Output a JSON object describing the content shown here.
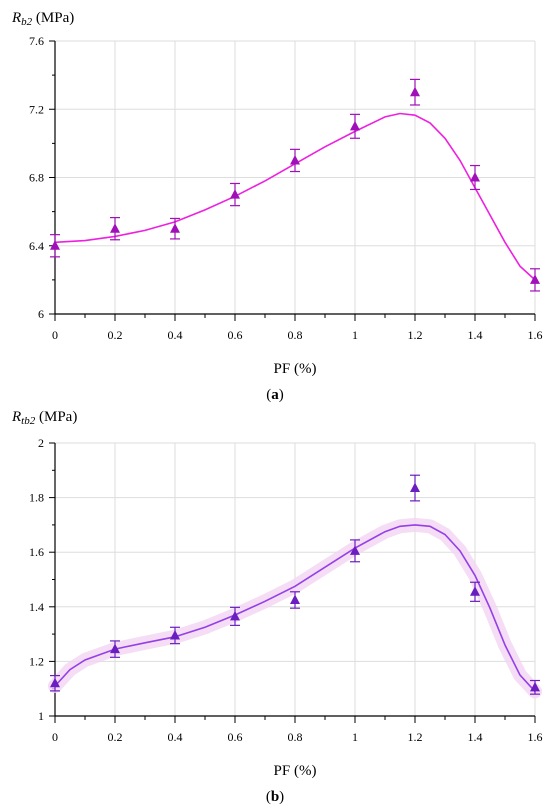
{
  "figure": {
    "panels": [
      {
        "caption_letter": "a",
        "ylabel_main": "R",
        "ylabel_sub": "b2",
        "ylabel_unit": " (MPa)",
        "xlabel": "PF (%)"
      },
      {
        "caption_letter": "b",
        "ylabel_main": "R",
        "ylabel_sub": "tb2",
        "ylabel_unit": " (MPa)",
        "xlabel": "PF (%)"
      }
    ]
  },
  "chart_data": [
    {
      "type": "scatter",
      "xlabel": "PF (%)",
      "ylabel": "Rb2 (MPa)",
      "xlim": [
        0,
        1.6
      ],
      "ylim": [
        6,
        7.6
      ],
      "xticks": [
        0,
        0.2,
        0.4,
        0.6,
        0.8,
        1,
        1.2,
        1.4,
        1.6
      ],
      "yticks": [
        6,
        6.4,
        6.8,
        7.2,
        7.6
      ],
      "xtick_labels": [
        "0",
        "0.2",
        "0.4",
        "0.6",
        "0.8",
        "1",
        "1.2",
        "1.4",
        "1.6"
      ],
      "ytick_labels": [
        "6",
        "6.4",
        "6.8",
        "7.2",
        "7.6"
      ],
      "grid": true,
      "marker_color": "#a010b8",
      "fit_color": "#ee20e0",
      "series": [
        {
          "x": [
            0,
            0.2,
            0.4,
            0.6,
            0.8,
            1,
            1.2,
            1.4,
            1.6
          ],
          "y": [
            6.4,
            6.5,
            6.5,
            6.7,
            6.9,
            7.1,
            7.3,
            6.8,
            6.2
          ],
          "err": [
            0.065,
            0.065,
            0.06,
            0.065,
            0.065,
            0.07,
            0.075,
            0.07,
            0.065
          ]
        }
      ],
      "fit": {
        "x": [
          0,
          0.1,
          0.2,
          0.3,
          0.4,
          0.5,
          0.6,
          0.7,
          0.8,
          0.9,
          1,
          1.1,
          1.15,
          1.2,
          1.25,
          1.3,
          1.35,
          1.4,
          1.45,
          1.5,
          1.55,
          1.6
        ],
        "y": [
          6.42,
          6.43,
          6.455,
          6.49,
          6.54,
          6.61,
          6.69,
          6.78,
          6.88,
          6.98,
          7.07,
          7.155,
          7.175,
          7.165,
          7.12,
          7.03,
          6.9,
          6.74,
          6.58,
          6.42,
          6.28,
          6.2
        ]
      }
    },
    {
      "type": "scatter",
      "xlabel": "PF (%)",
      "ylabel": "Rtb2 (MPa)",
      "xlim": [
        0,
        1.6
      ],
      "ylim": [
        1,
        2
      ],
      "xticks": [
        0,
        0.2,
        0.4,
        0.6,
        0.8,
        1,
        1.2,
        1.4,
        1.6
      ],
      "yticks": [
        1,
        1.2,
        1.4,
        1.6,
        1.8,
        2
      ],
      "xtick_labels": [
        "0",
        "0.2",
        "0.4",
        "0.6",
        "0.8",
        "1",
        "1.2",
        "1.4",
        "1.6"
      ],
      "ytick_labels": [
        "1",
        "1.2",
        "1.4",
        "1.6",
        "1.8",
        "2"
      ],
      "grid": true,
      "marker_color": "#6a1ec0",
      "fit_color": "#9440e6",
      "series": [
        {
          "x": [
            0,
            0.2,
            0.4,
            0.6,
            0.8,
            1,
            1.2,
            1.4,
            1.6
          ],
          "y": [
            1.12,
            1.245,
            1.295,
            1.365,
            1.425,
            1.605,
            1.835,
            1.455,
            1.105
          ],
          "err": [
            0.028,
            0.03,
            0.03,
            0.033,
            0.03,
            0.04,
            0.047,
            0.035,
            0.025
          ]
        }
      ],
      "fit": {
        "x": [
          0,
          0.05,
          0.1,
          0.2,
          0.3,
          0.4,
          0.5,
          0.6,
          0.7,
          0.8,
          0.9,
          1,
          1.1,
          1.15,
          1.2,
          1.25,
          1.3,
          1.35,
          1.4,
          1.45,
          1.5,
          1.55,
          1.6
        ],
        "y": [
          1.11,
          1.17,
          1.205,
          1.245,
          1.268,
          1.29,
          1.325,
          1.37,
          1.42,
          1.475,
          1.545,
          1.615,
          1.675,
          1.695,
          1.7,
          1.695,
          1.665,
          1.605,
          1.515,
          1.395,
          1.26,
          1.15,
          1.09
        ]
      }
    }
  ]
}
